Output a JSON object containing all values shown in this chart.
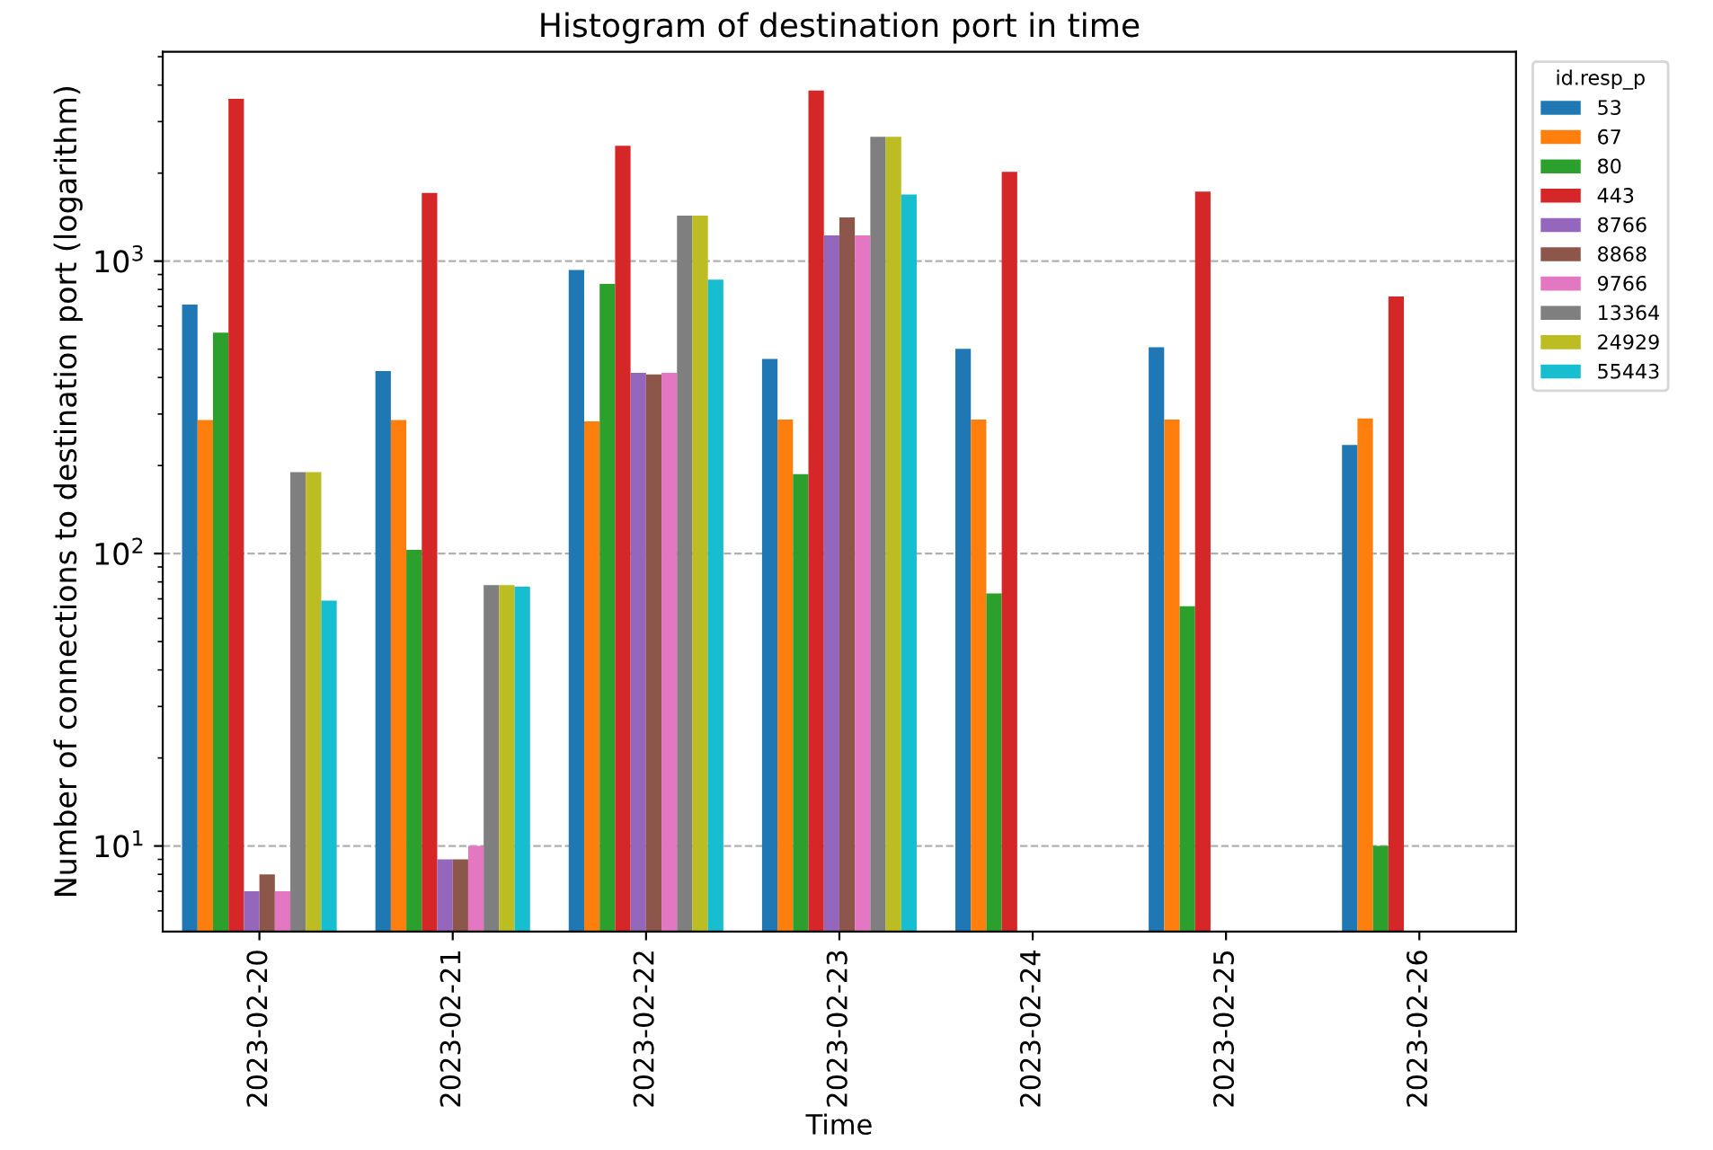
{
  "chart_data": {
    "type": "bar",
    "title": "Histogram of destination port in time",
    "xlabel": "Time",
    "ylabel": "Number of connections to destination port (logarithm)",
    "legend_title": "id.resp_p",
    "legend": "top right",
    "log": true,
    "grid": "y",
    "categories": [
      "2023-02-20",
      "2023-02-21",
      "2023-02-22",
      "2023-02-23",
      "2023-02-24",
      "2023-02-25",
      "2023-02-26"
    ],
    "ylim": [
      5.1,
      5200
    ],
    "yticks": [
      {
        "value": 10,
        "label": "10$^{1}$"
      },
      {
        "value": 100,
        "label": "10$^{2}$"
      },
      {
        "value": 1000,
        "label": "10$^{3}$"
      }
    ],
    "series": [
      {
        "name": "53",
        "color": "#1f77b4",
        "values": [
          710,
          421,
          933,
          463,
          501,
          508,
          235
        ]
      },
      {
        "name": "67",
        "color": "#ff7f0e",
        "values": [
          286,
          286,
          283,
          287,
          287,
          287,
          290
        ]
      },
      {
        "name": "80",
        "color": "#2ca02c",
        "values": [
          569,
          103,
          836,
          187,
          73,
          66,
          10
        ]
      },
      {
        "name": "443",
        "color": "#d62728",
        "values": [
          3590,
          1710,
          2480,
          3830,
          2020,
          1730,
          757
        ]
      },
      {
        "name": "8766",
        "color": "#9467bd",
        "values": [
          7,
          9,
          415,
          1224,
          null,
          null,
          null
        ]
      },
      {
        "name": "8868",
        "color": "#8c564b",
        "values": [
          8,
          9,
          410,
          1410,
          null,
          null,
          null
        ]
      },
      {
        "name": "9766",
        "color": "#e377c2",
        "values": [
          7,
          10,
          415,
          1224,
          null,
          null,
          null
        ]
      },
      {
        "name": "13364",
        "color": "#7f7f7f",
        "values": [
          190,
          78,
          1430,
          2660,
          null,
          null,
          null
        ]
      },
      {
        "name": "24929",
        "color": "#bcbd22",
        "values": [
          190,
          78,
          1430,
          2660,
          null,
          null,
          null
        ]
      },
      {
        "name": "55443",
        "color": "#17becf",
        "values": [
          69,
          77,
          865,
          1690,
          null,
          null,
          null
        ]
      }
    ]
  }
}
